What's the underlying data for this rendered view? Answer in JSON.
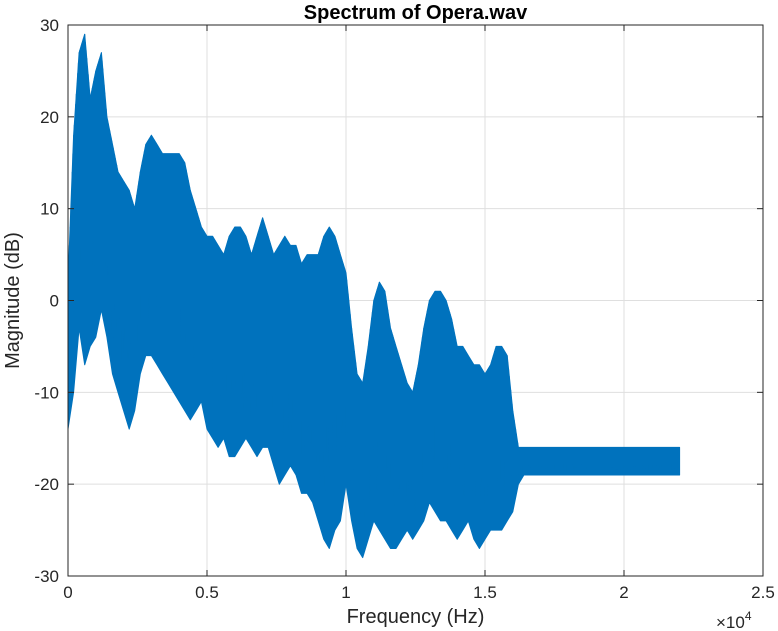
{
  "chart_data": {
    "type": "line",
    "title": "Spectrum of Opera.wav",
    "xlabel": "Frequency (Hz)",
    "ylabel": "Magnitude (dB)",
    "xlim": [
      0,
      25000
    ],
    "ylim": [
      -30,
      30
    ],
    "x_ticks": [
      0,
      5000,
      10000,
      15000,
      20000,
      25000
    ],
    "x_tick_labels": [
      "0",
      "0.5",
      "1",
      "1.5",
      "2",
      "2.5"
    ],
    "x_exponent_label": "×10",
    "x_exponent_power": "4",
    "y_ticks": [
      -30,
      -20,
      -10,
      0,
      10,
      20,
      30
    ],
    "y_tick_labels": [
      "-30",
      "-20",
      "-10",
      "0",
      "10",
      "20",
      "30"
    ],
    "grid": true,
    "line_color": "#0072BD",
    "series": [
      {
        "x": [
          0,
          200,
          400,
          600,
          800,
          1000,
          1200,
          1400,
          1600,
          1800,
          2000,
          2200,
          2400,
          2600,
          2800,
          3000,
          3200,
          3400,
          3600,
          3800,
          4000,
          4200,
          4400,
          4600,
          4800,
          5000,
          5200,
          5400,
          5600,
          5800,
          6000,
          6200,
          6400,
          6600,
          6800,
          7000,
          7200,
          7400,
          7600,
          7800,
          8000,
          8200,
          8400,
          8600,
          8800,
          9000,
          9200,
          9400,
          9600,
          9800,
          10000,
          10200,
          10400,
          10600,
          10800,
          11000,
          11200,
          11400,
          11600,
          11800,
          12000,
          12200,
          12400,
          12600,
          12800,
          13000,
          13200,
          13400,
          13600,
          13800,
          14000,
          14200,
          14400,
          14600,
          14800,
          15000,
          15200,
          15400,
          15600,
          15800,
          16000,
          16200,
          16400,
          16600,
          16800,
          17000,
          17200,
          17400,
          17600,
          17800,
          18000,
          18200,
          18400,
          18600,
          18800,
          19000,
          19200,
          19400,
          19600,
          19800,
          20000,
          20200,
          20400,
          20600,
          20800,
          21000,
          21200,
          21400,
          21600,
          21800,
          22000
        ],
        "upper": [
          2,
          18,
          27,
          29,
          22,
          25,
          27,
          20,
          17,
          14,
          13,
          12,
          10,
          14,
          17,
          18,
          17,
          16,
          16,
          16,
          16,
          15,
          12,
          10,
          8,
          7,
          7,
          6,
          5,
          7,
          8,
          8,
          7,
          5,
          7,
          9,
          7,
          5,
          6,
          7,
          6,
          6,
          4,
          5,
          5,
          5,
          7,
          8,
          7,
          5,
          3,
          -3,
          -8,
          -9,
          -5,
          0,
          2,
          1,
          -3,
          -5,
          -7,
          -9,
          -10,
          -7,
          -3,
          0,
          1,
          1,
          0,
          -2,
          -5,
          -5,
          -6,
          -7,
          -7,
          -8,
          -7,
          -5,
          -5,
          -6,
          -12,
          -16,
          -16,
          -16,
          -16,
          -16,
          -16,
          -16,
          -16,
          -16,
          -16,
          -16,
          -16,
          -16,
          -16,
          -16,
          -16,
          -16,
          -16,
          -16,
          -16,
          -16,
          -16,
          -16,
          -16,
          -16,
          -16,
          -16,
          -16,
          -16,
          -16
        ],
        "lower": [
          -14,
          -10,
          -3,
          -7,
          -5,
          -4,
          -1,
          -4,
          -8,
          -10,
          -12,
          -14,
          -12,
          -8,
          -6,
          -6,
          -7,
          -8,
          -9,
          -10,
          -11,
          -12,
          -13,
          -12,
          -11,
          -14,
          -15,
          -16,
          -15,
          -17,
          -17,
          -16,
          -15,
          -16,
          -17,
          -16,
          -16,
          -18,
          -20,
          -19,
          -18,
          -19,
          -21,
          -21,
          -22,
          -24,
          -26,
          -27,
          -25,
          -24,
          -20,
          -24,
          -27,
          -28,
          -26,
          -24,
          -25,
          -26,
          -27,
          -27,
          -26,
          -25,
          -26,
          -25,
          -24,
          -22,
          -23,
          -24,
          -24,
          -25,
          -26,
          -25,
          -24,
          -26,
          -27,
          -26,
          -25,
          -25,
          -25,
          -24,
          -23,
          -20,
          -19,
          -19,
          -19,
          -19,
          -19,
          -19,
          -19,
          -19,
          -19,
          -19,
          -19,
          -19,
          -19,
          -19,
          -19,
          -19,
          -19,
          -19,
          -19,
          -19,
          -19,
          -19,
          -19,
          -19,
          -19,
          -19,
          -19,
          -19,
          -19
        ]
      }
    ]
  }
}
